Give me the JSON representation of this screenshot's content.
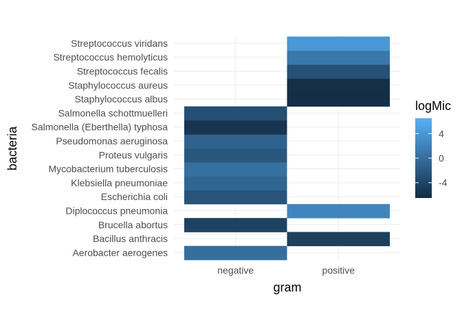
{
  "chart_data": {
    "type": "heatmap",
    "xlabel": "gram",
    "ylabel": "bacteria",
    "x_categories": [
      "negative",
      "positive"
    ],
    "y_categories": [
      "Aerobacter aerogenes",
      "Bacillus anthracis",
      "Brucella abortus",
      "Diplococcus pneumonia",
      "Escherichia coli",
      "Klebsiella pneumoniae",
      "Mycobacterium tuberculosis",
      "Proteus vulgaris",
      "Pseudomonas aeruginosa",
      "Salmonella (Eberthella) typhosa",
      "Salmonella schottmuelleri",
      "Staphylococcus albus",
      "Staphylococcus aureus",
      "Streptococcus fecalis",
      "Streptococcus hemolyticus",
      "Streptococcus viridans"
    ],
    "cells": [
      {
        "bacteria": "Aerobacter aerogenes",
        "gram": "negative",
        "value": 0.0
      },
      {
        "bacteria": "Bacillus anthracis",
        "gram": "positive",
        "value": -4.5
      },
      {
        "bacteria": "Brucella abortus",
        "gram": "negative",
        "value": -4.3
      },
      {
        "bacteria": "Diplococcus pneumonia",
        "gram": "positive",
        "value": 2.3
      },
      {
        "bacteria": "Escherichia coli",
        "gram": "negative",
        "value": -2.5
      },
      {
        "bacteria": "Klebsiella pneumoniae",
        "gram": "negative",
        "value": -0.8
      },
      {
        "bacteria": "Mycobacterium tuberculosis",
        "gram": "negative",
        "value": 0.2
      },
      {
        "bacteria": "Proteus vulgaris",
        "gram": "negative",
        "value": -2.3
      },
      {
        "bacteria": "Pseudomonas aeruginosa",
        "gram": "negative",
        "value": -1.2
      },
      {
        "bacteria": "Salmonella (Eberthella) typhosa",
        "gram": "negative",
        "value": -5.5
      },
      {
        "bacteria": "Salmonella schottmuelleri",
        "gram": "negative",
        "value": -3.0
      },
      {
        "bacteria": "Staphylococcus albus",
        "gram": "positive",
        "value": -6.2
      },
      {
        "bacteria": "Staphylococcus aureus",
        "gram": "positive",
        "value": -6.1
      },
      {
        "bacteria": "Streptococcus fecalis",
        "gram": "positive",
        "value": -2.9
      },
      {
        "bacteria": "Streptococcus hemolyticus",
        "gram": "positive",
        "value": 1.0
      },
      {
        "bacteria": "Streptococcus viridans",
        "gram": "positive",
        "value": 4.0
      }
    ],
    "legend": {
      "title": "logMic",
      "position": "right",
      "breaks": [
        4,
        0,
        -4
      ],
      "break_labels": [
        "4",
        "0",
        "-4"
      ],
      "range": [
        -6.5,
        6.5
      ],
      "low_color": "#132b43",
      "high_color": "#56b1f7"
    },
    "grid": true
  }
}
